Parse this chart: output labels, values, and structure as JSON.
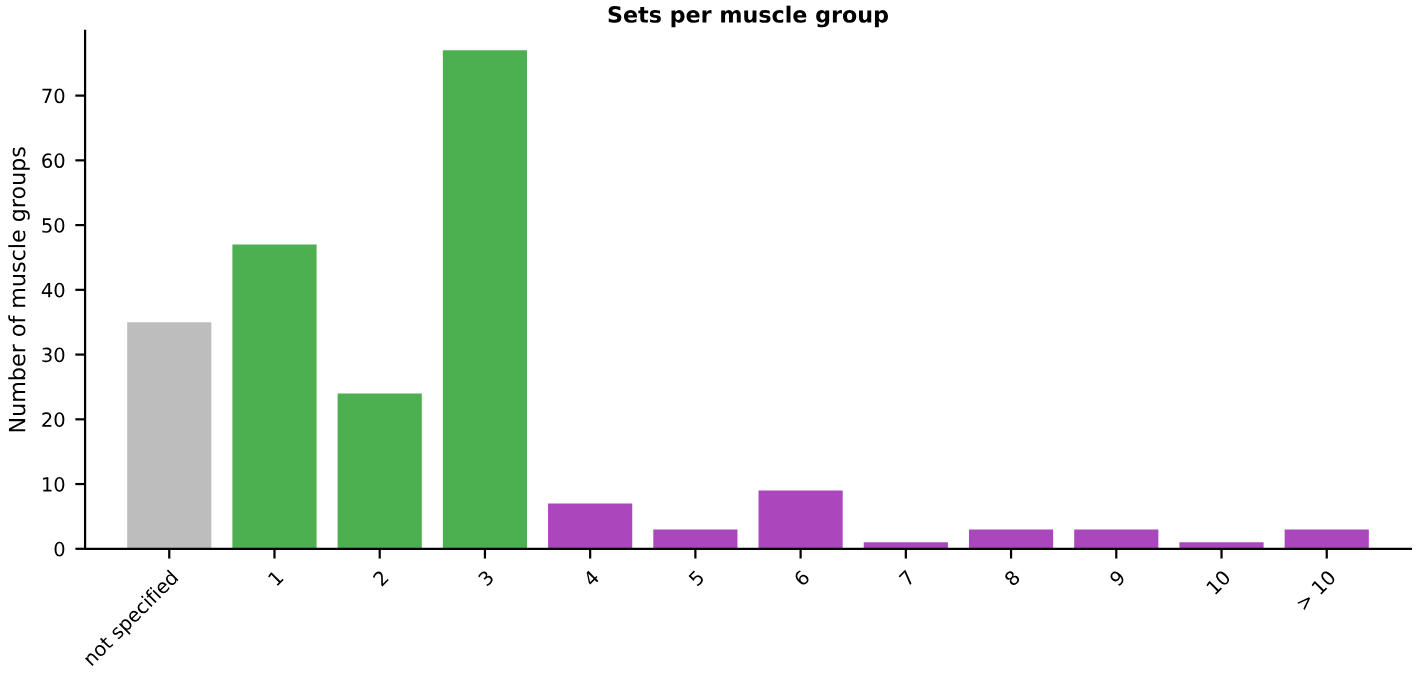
{
  "chart_data": {
    "type": "bar",
    "title": "Sets per muscle group",
    "ylabel": "Number of muscle groups",
    "categories": [
      "not specified",
      "1",
      "2",
      "3",
      "4",
      "5",
      "6",
      "7",
      "8",
      "9",
      "10",
      "> 10"
    ],
    "values": [
      35,
      47,
      24,
      77,
      7,
      3,
      9,
      1,
      3,
      3,
      1,
      3
    ],
    "colors": [
      "#bdbdbd",
      "#4caf50",
      "#4caf50",
      "#4caf50",
      "#ab47bc",
      "#ab47bc",
      "#ab47bc",
      "#ab47bc",
      "#ab47bc",
      "#ab47bc",
      "#ab47bc",
      "#ab47bc"
    ],
    "ylim": [
      0,
      80
    ],
    "yticks": [
      0,
      10,
      20,
      30,
      40,
      50,
      60,
      70
    ],
    "grid": false
  }
}
